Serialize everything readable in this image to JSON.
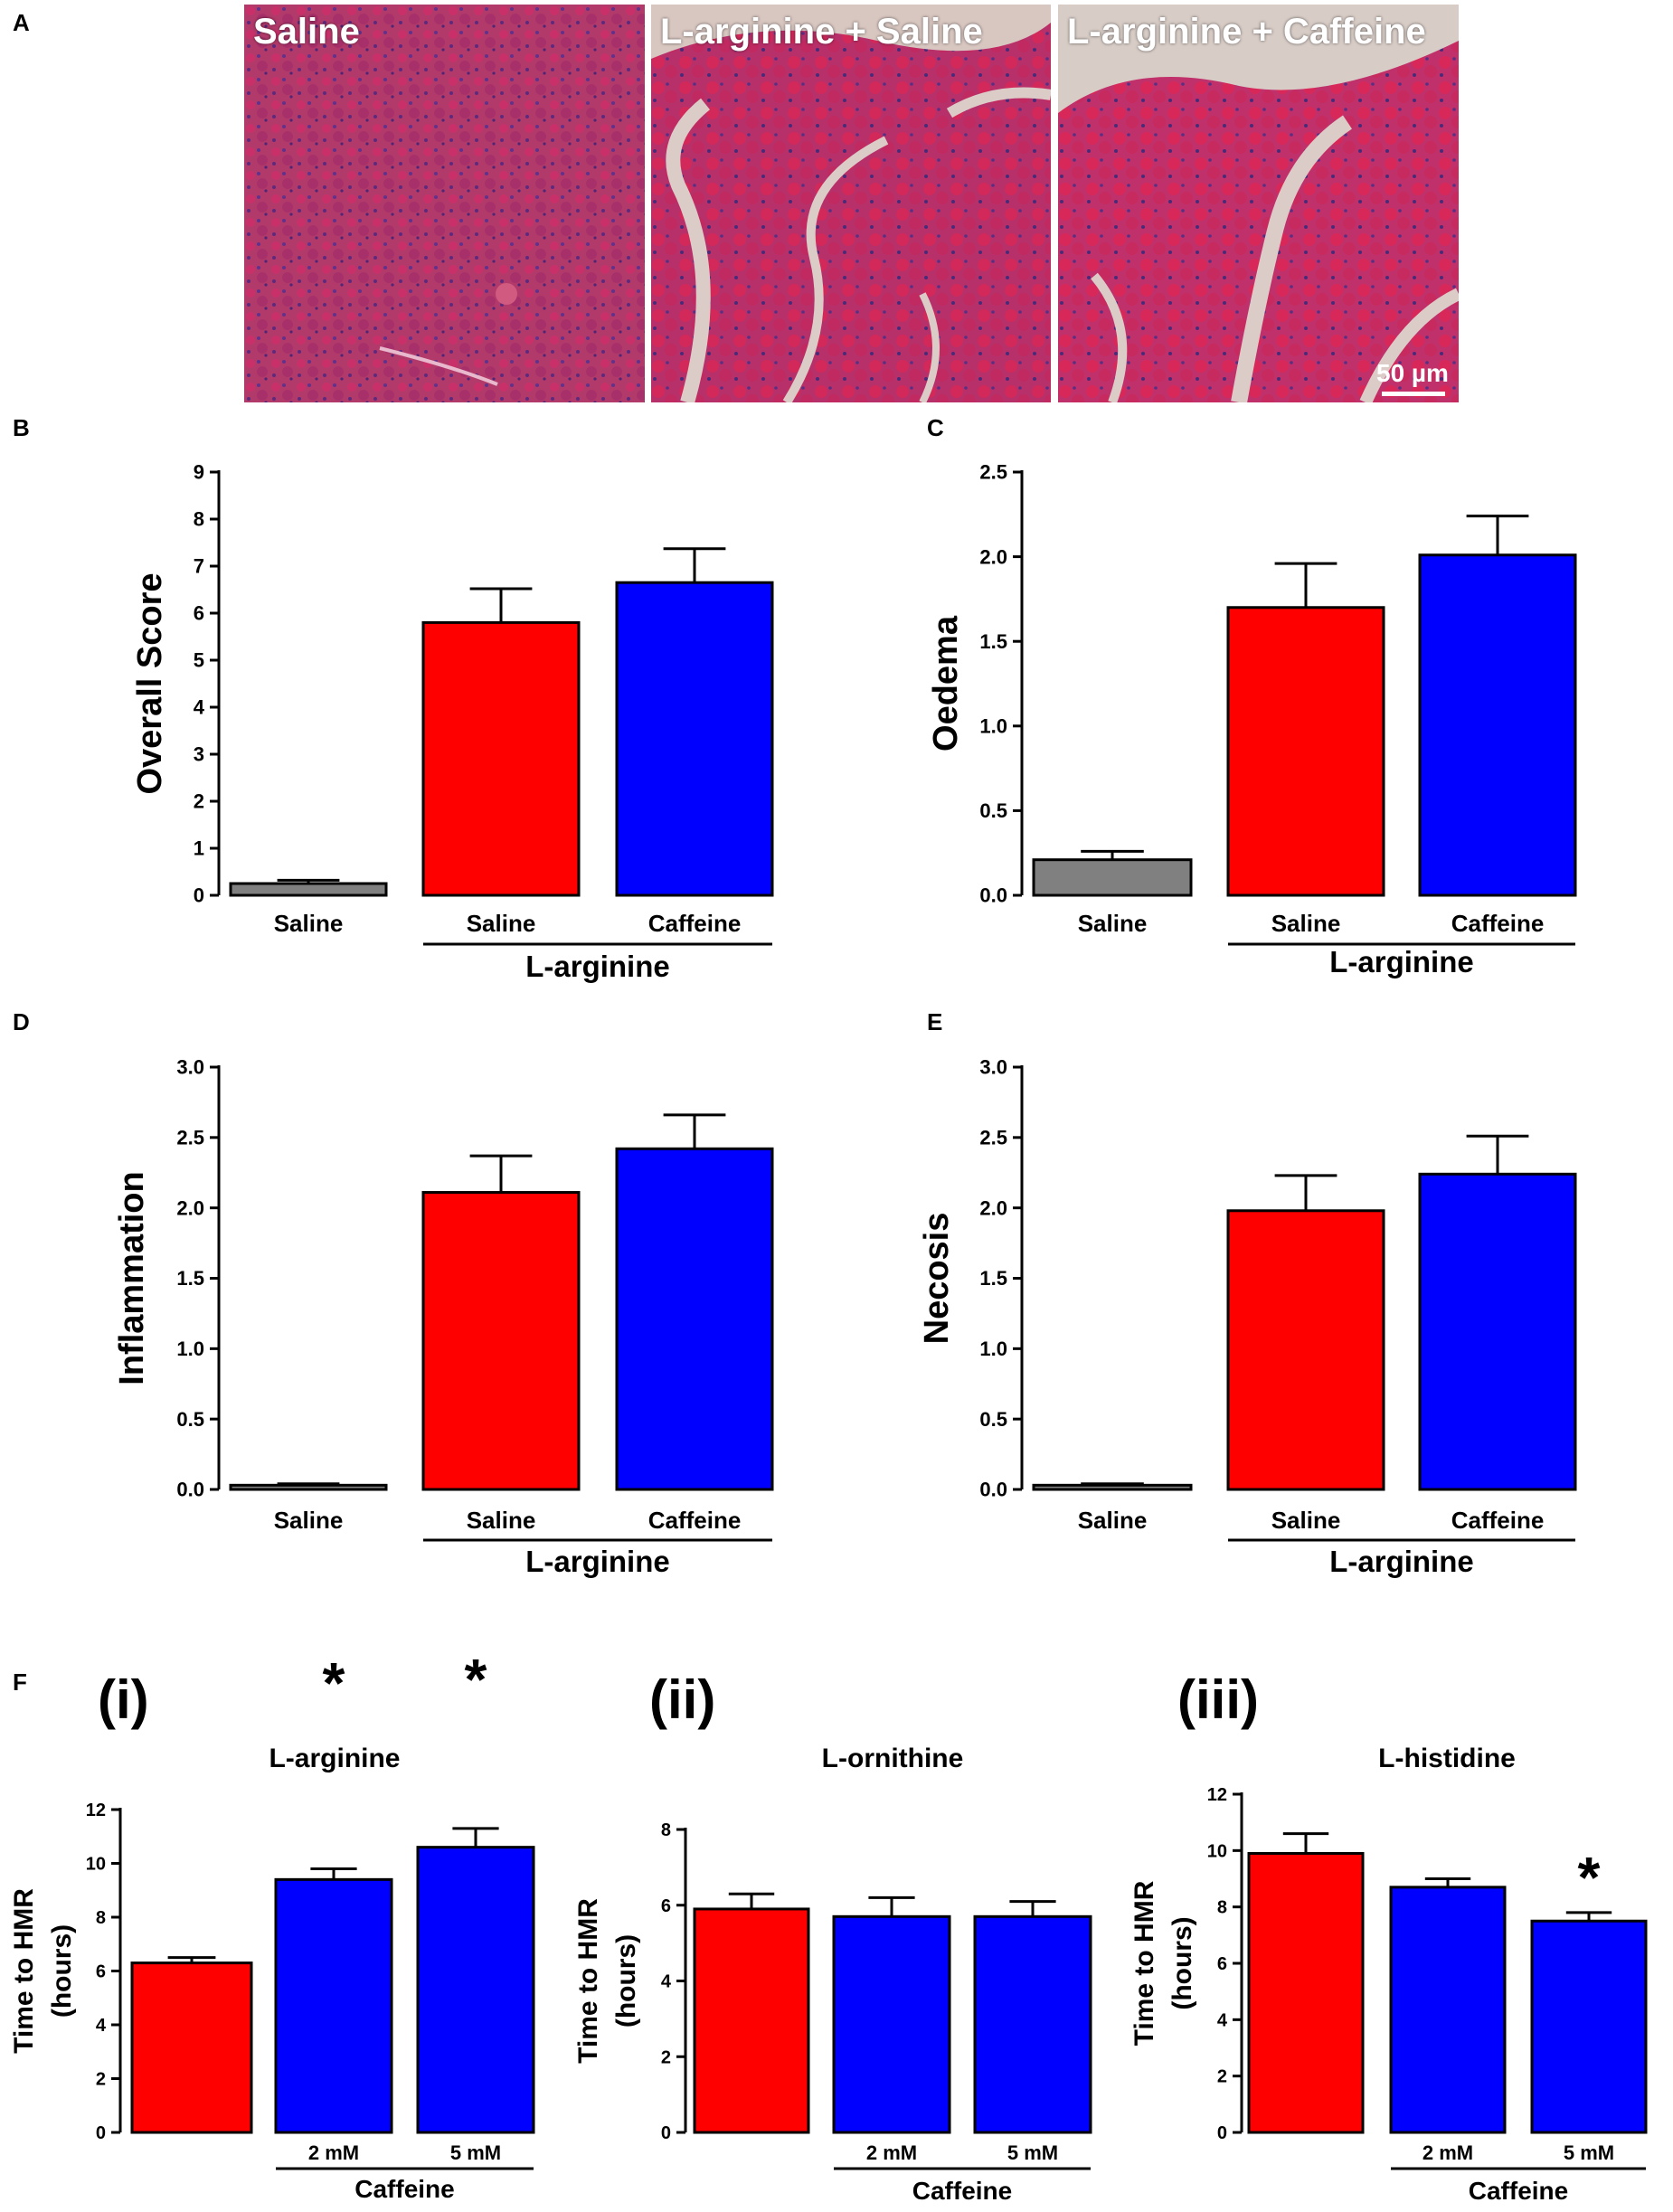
{
  "panel_labels": {
    "a": "A",
    "b": "B",
    "c": "C",
    "d": "D",
    "e": "E",
    "f": "F"
  },
  "micrographs": [
    {
      "label": "Saline",
      "tint": "#b8325e"
    },
    {
      "label": "L-arginine + Saline",
      "tint": "#c42a5c"
    },
    {
      "label": "L-arginine + Caffeine",
      "tint": "#c92b58"
    }
  ],
  "scale_bar": "50 µm",
  "colors": {
    "saline": "#808080",
    "red": "#ff0000",
    "blue": "#0000ff"
  },
  "chart_data": [
    {
      "id": "B",
      "type": "bar",
      "ylabel": "Overall Score",
      "ylim": [
        0,
        9
      ],
      "yticks": [
        "0",
        "1",
        "2",
        "3",
        "4",
        "5",
        "6",
        "7",
        "8",
        "9"
      ],
      "categories": [
        "Saline",
        "Saline",
        "Caffeine"
      ],
      "group_label": "L-arginine",
      "values": [
        0.25,
        5.8,
        6.65
      ],
      "errors": [
        0.07,
        0.72,
        0.72
      ],
      "bar_colors": [
        "#808080",
        "#ff0000",
        "#0000ff"
      ],
      "asterisks": [
        "",
        "",
        ""
      ]
    },
    {
      "id": "C",
      "type": "bar",
      "ylabel": "Oedema",
      "ylim": [
        0,
        2.5
      ],
      "yticks": [
        "0.0",
        "0.5",
        "1.0",
        "1.5",
        "2.0",
        "2.5"
      ],
      "categories": [
        "Saline",
        "Saline",
        "Caffeine"
      ],
      "group_label": "L-arginine",
      "values": [
        0.21,
        1.7,
        2.01
      ],
      "errors": [
        0.05,
        0.26,
        0.23
      ],
      "bar_colors": [
        "#808080",
        "#ff0000",
        "#0000ff"
      ],
      "asterisks": [
        "",
        "",
        ""
      ]
    },
    {
      "id": "D",
      "type": "bar",
      "ylabel": "Inflammation",
      "ylim": [
        0,
        3
      ],
      "yticks": [
        "0.0",
        "0.5",
        "1.0",
        "1.5",
        "2.0",
        "2.5",
        "3.0"
      ],
      "categories": [
        "Saline",
        "Saline",
        "Caffeine"
      ],
      "group_label": "L-arginine",
      "values": [
        0.03,
        2.11,
        2.42
      ],
      "errors": [
        0.01,
        0.26,
        0.24
      ],
      "bar_colors": [
        "#808080",
        "#ff0000",
        "#0000ff"
      ],
      "asterisks": [
        "",
        "",
        ""
      ]
    },
    {
      "id": "E",
      "type": "bar",
      "ylabel": "Necosis",
      "ylim": [
        0,
        3
      ],
      "yticks": [
        "0.0",
        "0.5",
        "1.0",
        "1.5",
        "2.0",
        "2.5",
        "3.0"
      ],
      "categories": [
        "Saline",
        "Saline",
        "Caffeine"
      ],
      "group_label": "L-arginine",
      "values": [
        0.03,
        1.98,
        2.24
      ],
      "errors": [
        0.01,
        0.25,
        0.27
      ],
      "bar_colors": [
        "#808080",
        "#ff0000",
        "#0000ff"
      ],
      "asterisks": [
        "",
        "",
        ""
      ]
    },
    {
      "id": "F-i",
      "type": "bar",
      "roman": "(i)",
      "title": "L-arginine",
      "ylabel": "Time to HMR",
      "ylabel2": "(hours)",
      "ylim": [
        0,
        12
      ],
      "yticks": [
        "0",
        "2",
        "4",
        "6",
        "8",
        "10",
        "12"
      ],
      "categories": [
        "",
        "2 mM",
        "5 mM"
      ],
      "group_label": "Caffeine",
      "values": [
        6.3,
        9.4,
        10.6
      ],
      "errors": [
        0.2,
        0.4,
        0.7
      ],
      "bar_colors": [
        "#ff0000",
        "#0000ff",
        "#0000ff"
      ],
      "asterisks": [
        "",
        "*",
        "*"
      ]
    },
    {
      "id": "F-ii",
      "type": "bar",
      "roman": "(ii)",
      "title": "L-ornithine",
      "ylabel": "Time to HMR",
      "ylabel2": "(hours)",
      "ylim": [
        0,
        8
      ],
      "yticks": [
        "0",
        "2",
        "4",
        "6",
        "8"
      ],
      "categories": [
        "",
        "2 mM",
        "5 mM"
      ],
      "group_label": "Caffeine",
      "values": [
        5.9,
        5.7,
        5.7
      ],
      "errors": [
        0.4,
        0.5,
        0.4
      ],
      "bar_colors": [
        "#ff0000",
        "#0000ff",
        "#0000ff"
      ],
      "asterisks": [
        "",
        "",
        ""
      ]
    },
    {
      "id": "F-iii",
      "type": "bar",
      "roman": "(iii)",
      "title": "L-histidine",
      "ylabel": "Time to HMR",
      "ylabel2": "(hours)",
      "ylim": [
        0,
        12
      ],
      "yticks": [
        "0",
        "2",
        "4",
        "6",
        "8",
        "10",
        "12"
      ],
      "categories": [
        "",
        "2 mM",
        "5 mM"
      ],
      "group_label": "Caffeine",
      "values": [
        9.9,
        8.7,
        7.5
      ],
      "errors": [
        0.7,
        0.3,
        0.3
      ],
      "bar_colors": [
        "#ff0000",
        "#0000ff",
        "#0000ff"
      ],
      "asterisks": [
        "",
        "",
        "*"
      ]
    }
  ]
}
